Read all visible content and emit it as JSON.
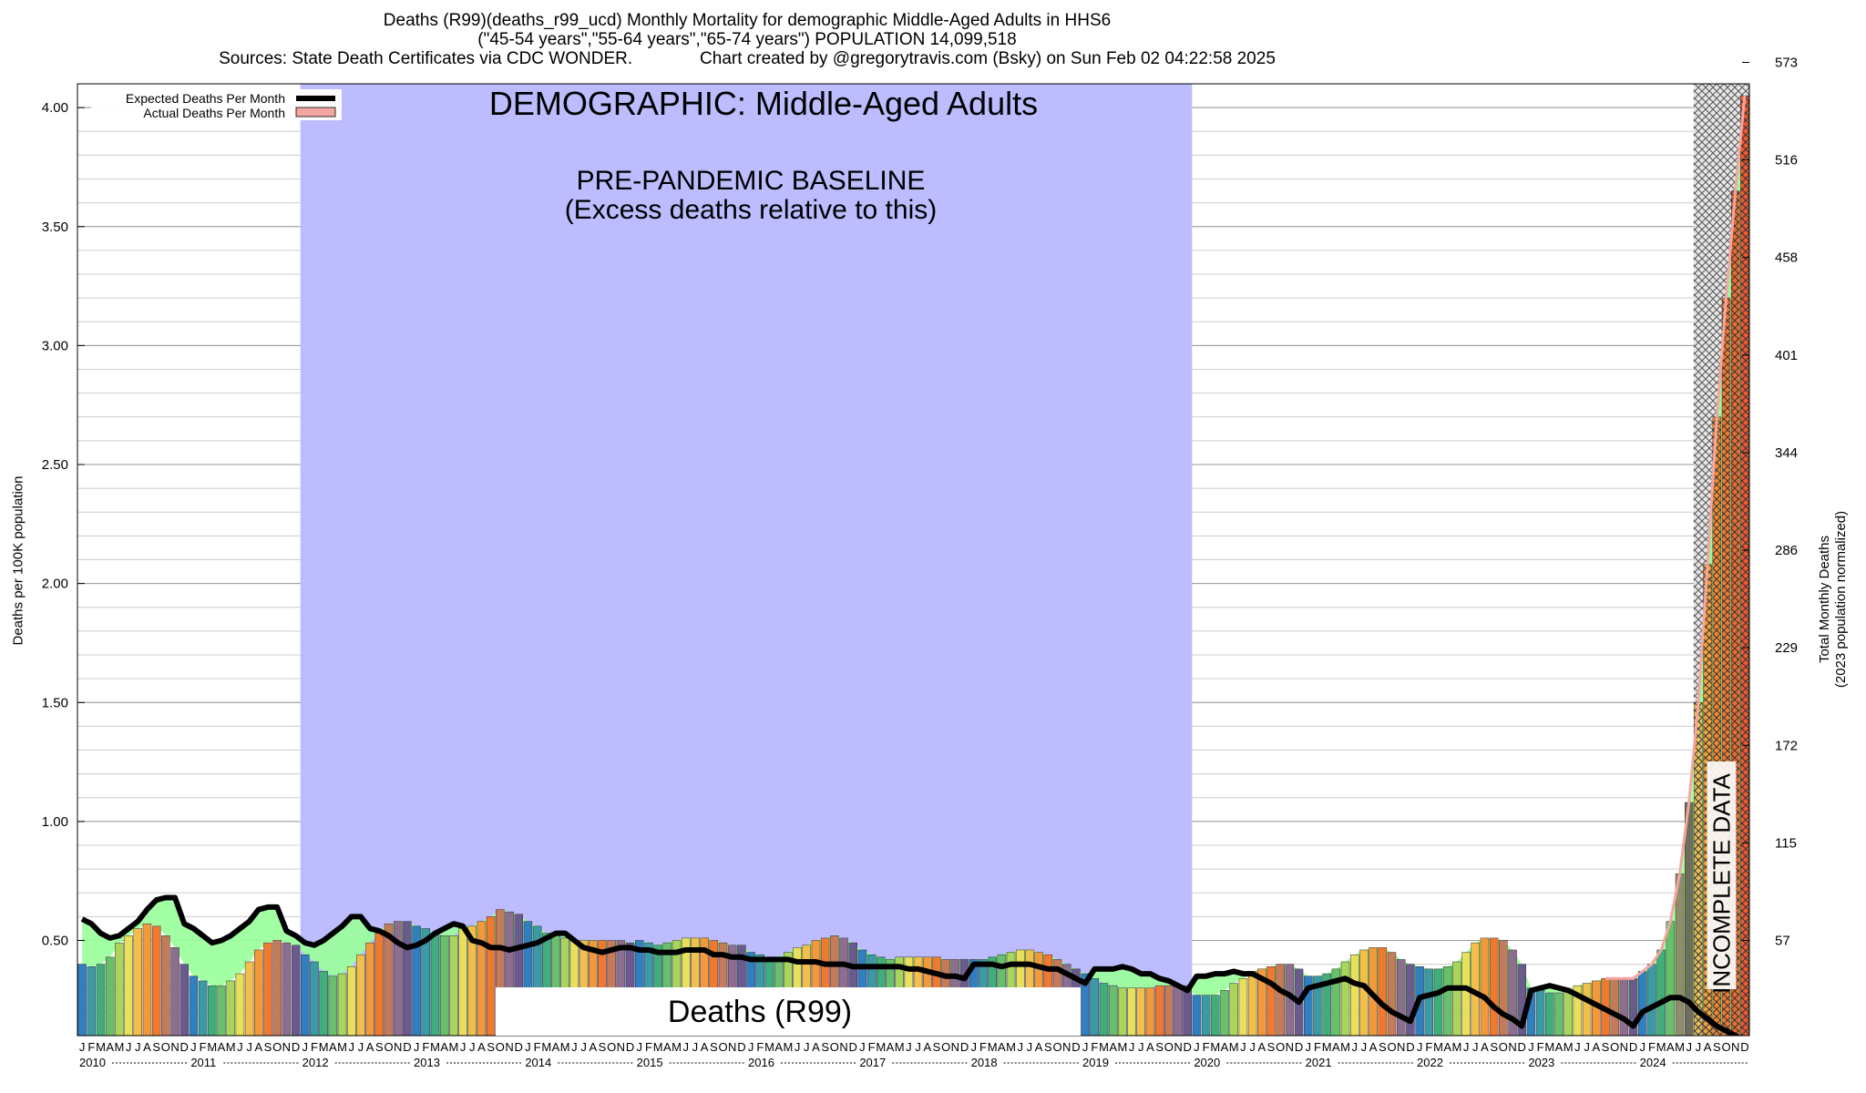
{
  "title": {
    "line1": "Deaths (R99)(deaths_r99_ucd) Monthly Mortality for demographic Middle-Aged Adults in HHS6",
    "line2": "(\"45-54 years\",\"55-64 years\",\"65-74 years\") POPULATION 14,099,518",
    "line3_left": "Sources: State Death Certificates via CDC WONDER.",
    "line3_right": "Chart created by @gregorytravis.com (Bsky) on Sun Feb 02 04:22:58 2025"
  },
  "colors": {
    "baseline_band": "#bcbcff",
    "expected_fill": "#99ff99",
    "expected_line": "#000000",
    "actual_legend": "#f4a6a0",
    "grid": "#cccccc",
    "label_box": "#ffffff",
    "hatch_region": "#d8d8d8",
    "bar_palette": [
      "#2f7fc1",
      "#3a9aa6",
      "#3fae7a",
      "#68c06a",
      "#a9d65a",
      "#e8e05a",
      "#f2c04a",
      "#f29a3a",
      "#ef7a2f",
      "#c57a5a",
      "#8e6e8e",
      "#6a5a8e"
    ]
  },
  "chart_data": {
    "type": "bar",
    "title": "DEMOGRAPHIC: Middle-Aged Adults",
    "ylabel": "Deaths per 100K population",
    "y2label_line1": "Total Monthly Deaths",
    "y2label_line2": "(2023 population normalized)",
    "ylim": [
      0.1,
      4.1
    ],
    "yticks": [
      "0.50",
      "1.00",
      "1.50",
      "2.00",
      "2.50",
      "3.00",
      "3.50",
      "4.00"
    ],
    "ytick_values": [
      0.5,
      1.0,
      1.5,
      2.0,
      2.5,
      3.0,
      3.5,
      4.0
    ],
    "y2ticks": [
      "57",
      "115",
      "172",
      "229",
      "286",
      "344",
      "401",
      "458",
      "516",
      "573"
    ],
    "y2tick_values": [
      0.5,
      0.91,
      1.32,
      1.73,
      2.14,
      2.55,
      2.96,
      3.37,
      3.78,
      4.19
    ],
    "month_letters": [
      "J",
      "F",
      "M",
      "A",
      "M",
      "J",
      "J",
      "A",
      "S",
      "O",
      "N",
      "D"
    ],
    "years": [
      "2010",
      "2011",
      "2012",
      "2013",
      "2014",
      "2015",
      "2016",
      "2017",
      "2018",
      "2019",
      "2020",
      "2021",
      "2022",
      "2023",
      "2024"
    ],
    "legend": {
      "expected": "Expected Deaths Per Month",
      "actual": "Actual Deaths Per Month",
      "position": "top-left"
    },
    "annotations": {
      "baseline_title": "PRE-PANDEMIC BASELINE",
      "baseline_subtitle": "(Excess deaths relative to this)",
      "cause_label": "Deaths (R99)",
      "incomplete": "INCOMPLETE DATA"
    },
    "baseline_start": "2012-01",
    "baseline_end": "2019-12",
    "incomplete_start": "2024-07",
    "actual": [
      0.4,
      0.39,
      0.4,
      0.43,
      0.49,
      0.52,
      0.55,
      0.57,
      0.56,
      0.52,
      0.47,
      0.4,
      0.35,
      0.33,
      0.31,
      0.31,
      0.33,
      0.36,
      0.41,
      0.46,
      0.49,
      0.5,
      0.49,
      0.48,
      0.44,
      0.41,
      0.37,
      0.35,
      0.36,
      0.39,
      0.44,
      0.49,
      0.53,
      0.57,
      0.58,
      0.58,
      0.56,
      0.55,
      0.53,
      0.52,
      0.52,
      0.55,
      0.56,
      0.58,
      0.6,
      0.63,
      0.62,
      0.61,
      0.58,
      0.56,
      0.53,
      0.52,
      0.51,
      0.5,
      0.5,
      0.5,
      0.5,
      0.5,
      0.5,
      0.49,
      0.5,
      0.49,
      0.48,
      0.49,
      0.5,
      0.51,
      0.51,
      0.51,
      0.5,
      0.49,
      0.48,
      0.48,
      0.45,
      0.44,
      0.43,
      0.43,
      0.45,
      0.47,
      0.48,
      0.5,
      0.51,
      0.52,
      0.51,
      0.49,
      0.46,
      0.44,
      0.43,
      0.42,
      0.43,
      0.43,
      0.43,
      0.43,
      0.43,
      0.42,
      0.42,
      0.42,
      0.42,
      0.42,
      0.43,
      0.44,
      0.45,
      0.46,
      0.46,
      0.45,
      0.44,
      0.42,
      0.4,
      0.38,
      0.36,
      0.34,
      0.32,
      0.31,
      0.3,
      0.3,
      0.3,
      0.3,
      0.31,
      0.31,
      0.31,
      0.31,
      0.27,
      0.27,
      0.27,
      0.29,
      0.32,
      0.34,
      0.37,
      0.38,
      0.39,
      0.4,
      0.4,
      0.38,
      0.35,
      0.35,
      0.36,
      0.38,
      0.41,
      0.44,
      0.46,
      0.47,
      0.47,
      0.45,
      0.42,
      0.4,
      0.39,
      0.38,
      0.38,
      0.39,
      0.41,
      0.45,
      0.49,
      0.51,
      0.51,
      0.5,
      0.46,
      0.4,
      0.3,
      0.29,
      0.28,
      0.28,
      0.29,
      0.31,
      0.32,
      0.33,
      0.34,
      0.34,
      0.34,
      0.34,
      0.37,
      0.4,
      0.46,
      0.58,
      0.78,
      1.08,
      1.5,
      2.08,
      2.7,
      3.2,
      3.65,
      4.05
    ],
    "expected": [
      0.59,
      0.57,
      0.53,
      0.51,
      0.52,
      0.55,
      0.58,
      0.63,
      0.67,
      0.68,
      0.68,
      0.57,
      0.55,
      0.52,
      0.49,
      0.5,
      0.52,
      0.55,
      0.58,
      0.63,
      0.64,
      0.64,
      0.54,
      0.52,
      0.49,
      0.48,
      0.5,
      0.53,
      0.56,
      0.6,
      0.6,
      0.55,
      0.54,
      0.52,
      0.49,
      0.47,
      0.48,
      0.5,
      0.53,
      0.55,
      0.57,
      0.56,
      0.5,
      0.49,
      0.47,
      0.47,
      0.46,
      0.47,
      0.48,
      0.49,
      0.51,
      0.53,
      0.53,
      0.5,
      0.47,
      0.46,
      0.45,
      0.46,
      0.47,
      0.47,
      0.46,
      0.46,
      0.45,
      0.45,
      0.45,
      0.46,
      0.46,
      0.46,
      0.44,
      0.44,
      0.43,
      0.43,
      0.42,
      0.42,
      0.42,
      0.42,
      0.42,
      0.41,
      0.41,
      0.41,
      0.4,
      0.4,
      0.4,
      0.39,
      0.39,
      0.39,
      0.39,
      0.39,
      0.39,
      0.38,
      0.38,
      0.37,
      0.36,
      0.35,
      0.35,
      0.34,
      0.4,
      0.4,
      0.4,
      0.39,
      0.4,
      0.4,
      0.4,
      0.39,
      0.38,
      0.38,
      0.36,
      0.34,
      0.32,
      0.38,
      0.38,
      0.38,
      0.39,
      0.38,
      0.36,
      0.36,
      0.34,
      0.33,
      0.31,
      0.29,
      0.35,
      0.35,
      0.36,
      0.36,
      0.37,
      0.36,
      0.36,
      0.34,
      0.32,
      0.29,
      0.27,
      0.24,
      0.3,
      0.31,
      0.32,
      0.33,
      0.34,
      0.32,
      0.31,
      0.27,
      0.23,
      0.2,
      0.18,
      0.16,
      0.26,
      0.27,
      0.28,
      0.3,
      0.3,
      0.3,
      0.28,
      0.26,
      0.22,
      0.19,
      0.17,
      0.14,
      0.29,
      0.3,
      0.31,
      0.3,
      0.29,
      0.27,
      0.25,
      0.23,
      0.21,
      0.19,
      0.17,
      0.14,
      0.2,
      0.22,
      0.24,
      0.26,
      0.26,
      0.24,
      0.2,
      0.17,
      0.14,
      0.12,
      0.1,
      0.08
    ]
  }
}
